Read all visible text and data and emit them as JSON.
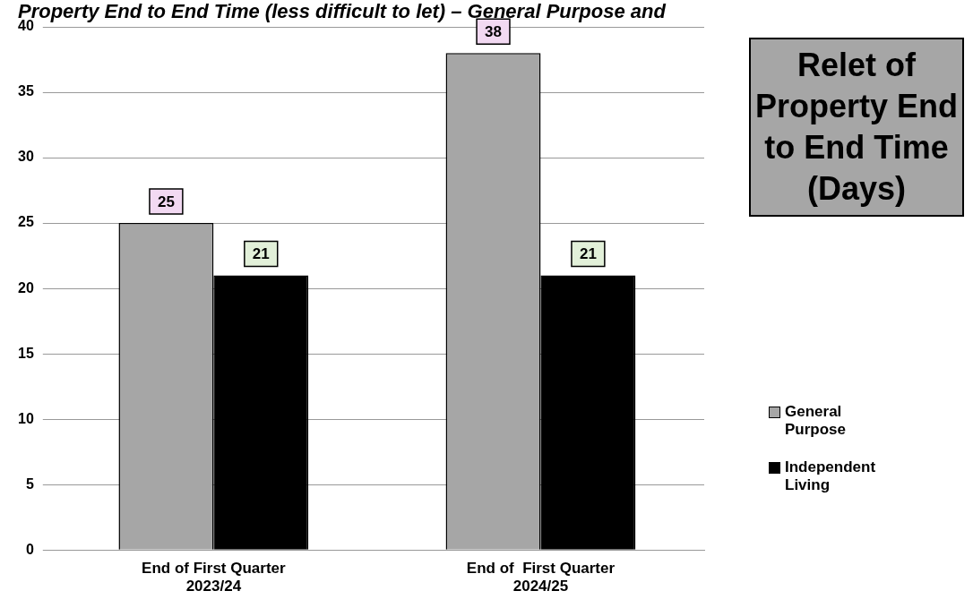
{
  "chart_data": {
    "type": "bar",
    "title": "Relet of Property End to End Time (Days)",
    "subtitle": "Property End to End Time (less difficult to let) – General Purpose and",
    "categories": [
      "End of First Quarter 2023/24",
      "End of  First Quarter 2024/25"
    ],
    "series": [
      {
        "name": "General Purpose",
        "color": "#a6a6a6",
        "values": [
          25,
          38
        ]
      },
      {
        "name": "Independent Living",
        "color": "#000000",
        "values": [
          21,
          21
        ]
      }
    ],
    "ylim": [
      0,
      40
    ],
    "yticks": [
      0,
      5,
      10,
      15,
      20,
      25,
      30,
      35,
      40
    ],
    "grid": "y",
    "legend": "right",
    "data_labels": true
  }
}
